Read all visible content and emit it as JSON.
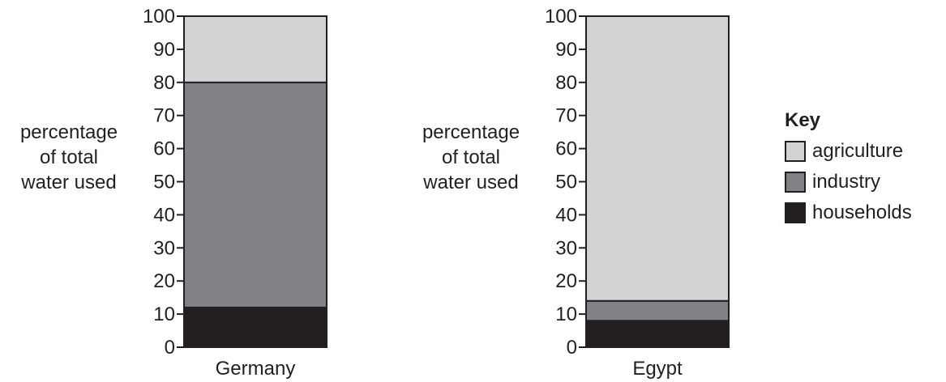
{
  "chart_data": [
    {
      "type": "bar",
      "stacked": true,
      "categories": [
        "Germany"
      ],
      "ylabel": "percentage of total water used",
      "ylim": [
        0,
        100
      ],
      "yticks": [
        0,
        10,
        20,
        30,
        40,
        50,
        60,
        70,
        80,
        90,
        100
      ],
      "series": [
        {
          "name": "households",
          "values": [
            12
          ]
        },
        {
          "name": "industry",
          "values": [
            68
          ]
        },
        {
          "name": "agriculture",
          "values": [
            20
          ]
        }
      ]
    },
    {
      "type": "bar",
      "stacked": true,
      "categories": [
        "Egypt"
      ],
      "ylabel": "percentage of total water used",
      "ylim": [
        0,
        100
      ],
      "yticks": [
        0,
        10,
        20,
        30,
        40,
        50,
        60,
        70,
        80,
        90,
        100
      ],
      "series": [
        {
          "name": "households",
          "values": [
            8
          ]
        },
        {
          "name": "industry",
          "values": [
            6
          ]
        },
        {
          "name": "agriculture",
          "values": [
            86
          ]
        }
      ]
    }
  ],
  "ylabel_lines": [
    "percentage",
    "of total",
    "water used"
  ],
  "legend": {
    "title": "Key",
    "items": [
      {
        "label": "agriculture",
        "color": "#d1d3d4"
      },
      {
        "label": "industry",
        "color": "#808285"
      },
      {
        "label": "households",
        "color": "#231f20"
      }
    ]
  },
  "colors": {
    "households": "#231f20",
    "industry": "#808285",
    "agriculture": "#d1d3d4",
    "outline": "#231f20"
  }
}
